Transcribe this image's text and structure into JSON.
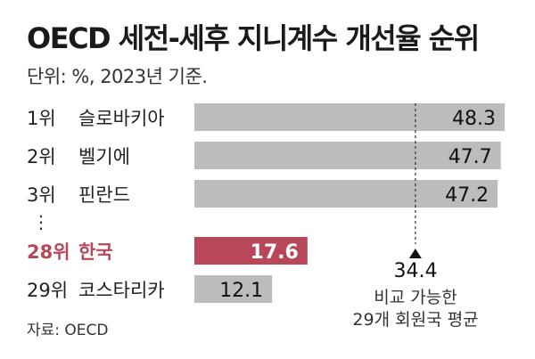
{
  "title": "OECD 세전-세후 지니계수 개선율 순위",
  "unit_note": "단위: %, 2023년 기준.",
  "source": "자료: OECD",
  "colors": {
    "bar_default": "#bcbcbc",
    "bar_highlight": "#b8475a",
    "label_highlight": "#b8475a",
    "text": "#222222"
  },
  "chart_data": {
    "type": "bar",
    "orientation": "horizontal",
    "gap_marker": "⋮",
    "rows": [
      {
        "rank": "1위",
        "country": "슬로바키아",
        "value": 48.3,
        "value_label": "48.3",
        "highlight": false
      },
      {
        "rank": "2위",
        "country": "벨기에",
        "value": 47.7,
        "value_label": "47.7",
        "highlight": false
      },
      {
        "rank": "3위",
        "country": "핀란드",
        "value": 47.2,
        "value_label": "47.2",
        "highlight": false
      },
      {
        "rank": "28위",
        "country": "한국",
        "value": 17.6,
        "value_label": "17.6",
        "highlight": true
      },
      {
        "rank": "29위",
        "country": "코스타리카",
        "value": 12.1,
        "value_label": "12.1",
        "highlight": false
      }
    ],
    "reference": {
      "value": 34.4,
      "value_label": "34.4",
      "label_lines": [
        "비교 가능한",
        "29개 회원국 평균"
      ]
    }
  }
}
